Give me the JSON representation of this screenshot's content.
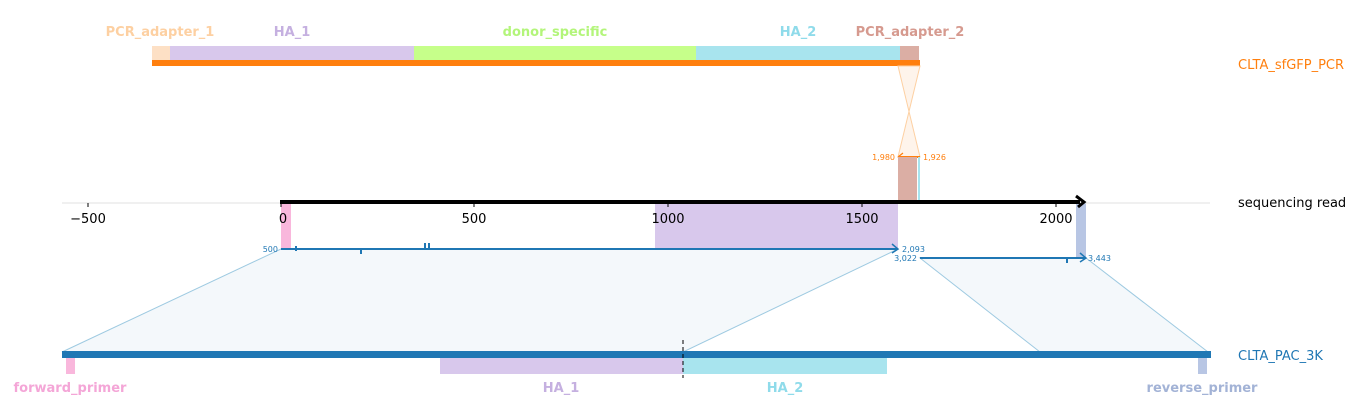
{
  "tracks": {
    "pcr": {
      "name": "CLTA_sfGFP_PCR",
      "color": "#ff7f0e"
    },
    "read": {
      "name": "sequencing read",
      "color": "#000000"
    },
    "genome": {
      "name": "CLTA_PAC_3K",
      "color": "#1f77b4"
    }
  },
  "pcr_features": [
    {
      "label": "PCR_adapter_1",
      "color": "#fde0c5",
      "label_color": "#fdd0a2"
    },
    {
      "label": "HA_1",
      "color": "#d8c8ec",
      "label_color": "#c5b0e0"
    },
    {
      "label": "donor_specific",
      "color": "#c6ff8a",
      "label_color": "#b3f57a"
    },
    {
      "label": "HA_2",
      "color": "#a8e4ee",
      "label_color": "#8fdbea"
    },
    {
      "label": "PCR_adapter_2",
      "color": "#dbaea4",
      "label_color": "#d69a8f"
    }
  ],
  "genome_features": [
    {
      "label": "forward_primer",
      "color": "#f9b7dc",
      "label_color": "#f4a6d7"
    },
    {
      "label": "HA_1",
      "color": "#d8c8ec",
      "label_color": "#c5b0e0"
    },
    {
      "label": "HA_2",
      "color": "#a8e4ee",
      "label_color": "#8fdbea"
    },
    {
      "label": "reverse_primer",
      "color": "#b8c6e4",
      "label_color": "#a3b3d6"
    }
  ],
  "axis": {
    "ticks": [
      "−500",
      "0",
      "500",
      "1000",
      "1500",
      "2000"
    ]
  },
  "alignment_labels": {
    "pcr_left": "1,980",
    "pcr_right": "1,926",
    "genome_start": "500",
    "genome_end_1": "2,093",
    "genome_start_2": "3,022",
    "genome_end_2": "3,443"
  }
}
